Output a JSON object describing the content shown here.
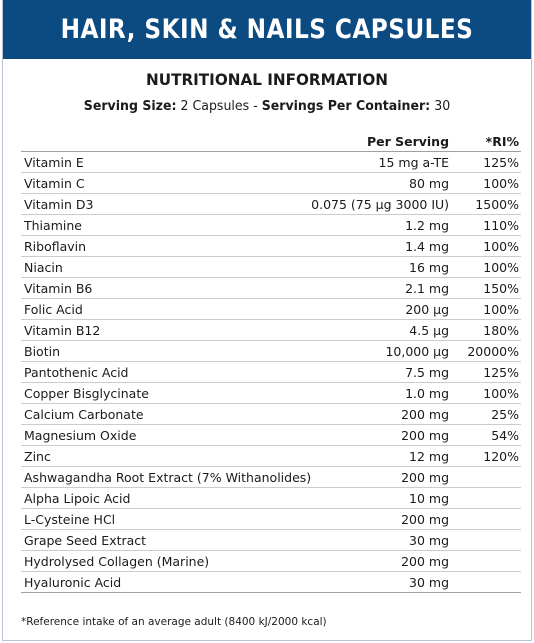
{
  "header": {
    "title": "HAIR, SKIN & NAILS CAPSULES"
  },
  "subtitle": "NUTRITIONAL INFORMATION",
  "serving": {
    "size_label": "Serving Size:",
    "size_value": "2 Capsules -",
    "per_container_label": "Servings Per Container:",
    "per_container_value": "30"
  },
  "table": {
    "columns": [
      "",
      "Per Serving",
      "*RI%"
    ],
    "rows": [
      {
        "name": "Vitamin E",
        "per_serving": "15 mg a-TE",
        "ri": "125%"
      },
      {
        "name": "Vitamin C",
        "per_serving": "80 mg",
        "ri": "100%"
      },
      {
        "name": "Vitamin D3",
        "per_serving": "0.075 (75 µg 3000 IU)",
        "ri": "1500%"
      },
      {
        "name": "Thiamine",
        "per_serving": "1.2 mg",
        "ri": "110%"
      },
      {
        "name": "Riboflavin",
        "per_serving": "1.4 mg",
        "ri": "100%"
      },
      {
        "name": "Niacin",
        "per_serving": "16 mg",
        "ri": "100%"
      },
      {
        "name": "Vitamin B6",
        "per_serving": "2.1 mg",
        "ri": "150%"
      },
      {
        "name": "Folic Acid",
        "per_serving": "200 µg",
        "ri": "100%"
      },
      {
        "name": "Vitamin B12",
        "per_serving": "4.5 µg",
        "ri": "180%"
      },
      {
        "name": "Biotin",
        "per_serving": "10,000 µg",
        "ri": "20000%"
      },
      {
        "name": "Pantothenic Acid",
        "per_serving": "7.5 mg",
        "ri": "125%"
      },
      {
        "name": "Copper Bisglycinate",
        "per_serving": "1.0 mg",
        "ri": "100%"
      },
      {
        "name": "Calcium Carbonate",
        "per_serving": "200 mg",
        "ri": "25%"
      },
      {
        "name": "Magnesium Oxide",
        "per_serving": "200 mg",
        "ri": "54%"
      },
      {
        "name": "Zinc",
        "per_serving": "12 mg",
        "ri": "120%"
      },
      {
        "name": "Ashwagandha Root Extract (7% Withanolides)",
        "per_serving": "200 mg",
        "ri": ""
      },
      {
        "name": "Alpha Lipoic Acid",
        "per_serving": "10 mg",
        "ri": ""
      },
      {
        "name": "L-Cysteine HCl",
        "per_serving": "200 mg",
        "ri": ""
      },
      {
        "name": "Grape Seed Extract",
        "per_serving": "30 mg",
        "ri": ""
      },
      {
        "name": "Hydrolysed Collagen (Marine)",
        "per_serving": "200 mg",
        "ri": ""
      },
      {
        "name": "Hyaluronic Acid",
        "per_serving": "30 mg",
        "ri": ""
      }
    ]
  },
  "footnote": "*Reference intake of an average adult (8400 kJ/2000 kcal)",
  "colors": {
    "banner": "#0c4b82",
    "banner_text": "#ffffff"
  }
}
